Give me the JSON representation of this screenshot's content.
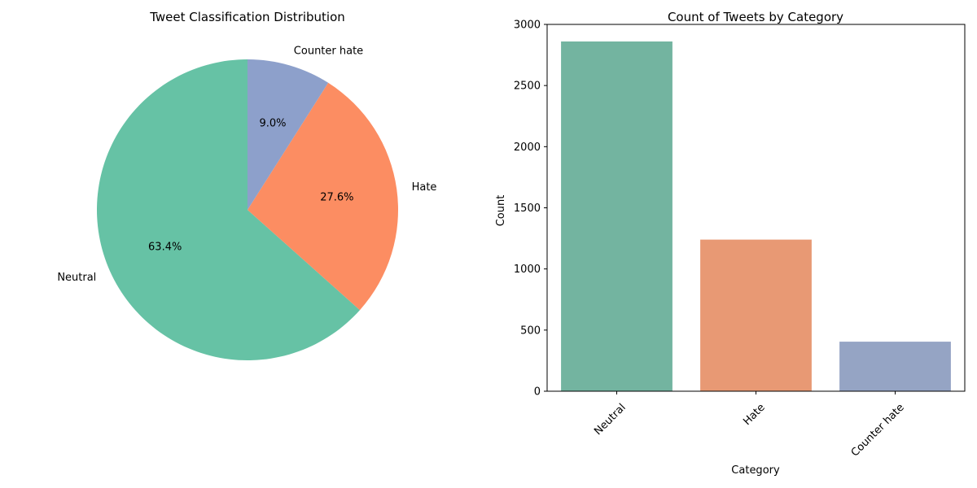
{
  "chart_data": [
    {
      "type": "pie",
      "title": "Tweet Classification Distribution",
      "labels": [
        "Neutral",
        "Hate",
        "Counter hate"
      ],
      "values": [
        63.4,
        27.6,
        9.0
      ],
      "pct_labels": [
        "63.4%",
        "27.6%",
        "9.0%"
      ],
      "colors": [
        "#66c2a5",
        "#fc8d62",
        "#8da0cb"
      ],
      "start_angle_deg": 90,
      "direction": "counterclockwise"
    },
    {
      "type": "bar",
      "title": "Count of Tweets by Category",
      "xlabel": "Category",
      "ylabel": "Count",
      "categories": [
        "Neutral",
        "Hate",
        "Counter hate"
      ],
      "values": [
        2860,
        1240,
        405
      ],
      "colors": [
        "#73b4a0",
        "#e89974",
        "#95a4c4"
      ],
      "ylim": [
        0,
        3000
      ],
      "yticks": [
        0,
        500,
        1000,
        1500,
        2000,
        2500,
        3000
      ],
      "ytick_labels": [
        "0",
        "500",
        "1000",
        "1500",
        "2000",
        "2500",
        "3000"
      ],
      "xtick_rotation_deg": 45,
      "grid": false
    }
  ]
}
